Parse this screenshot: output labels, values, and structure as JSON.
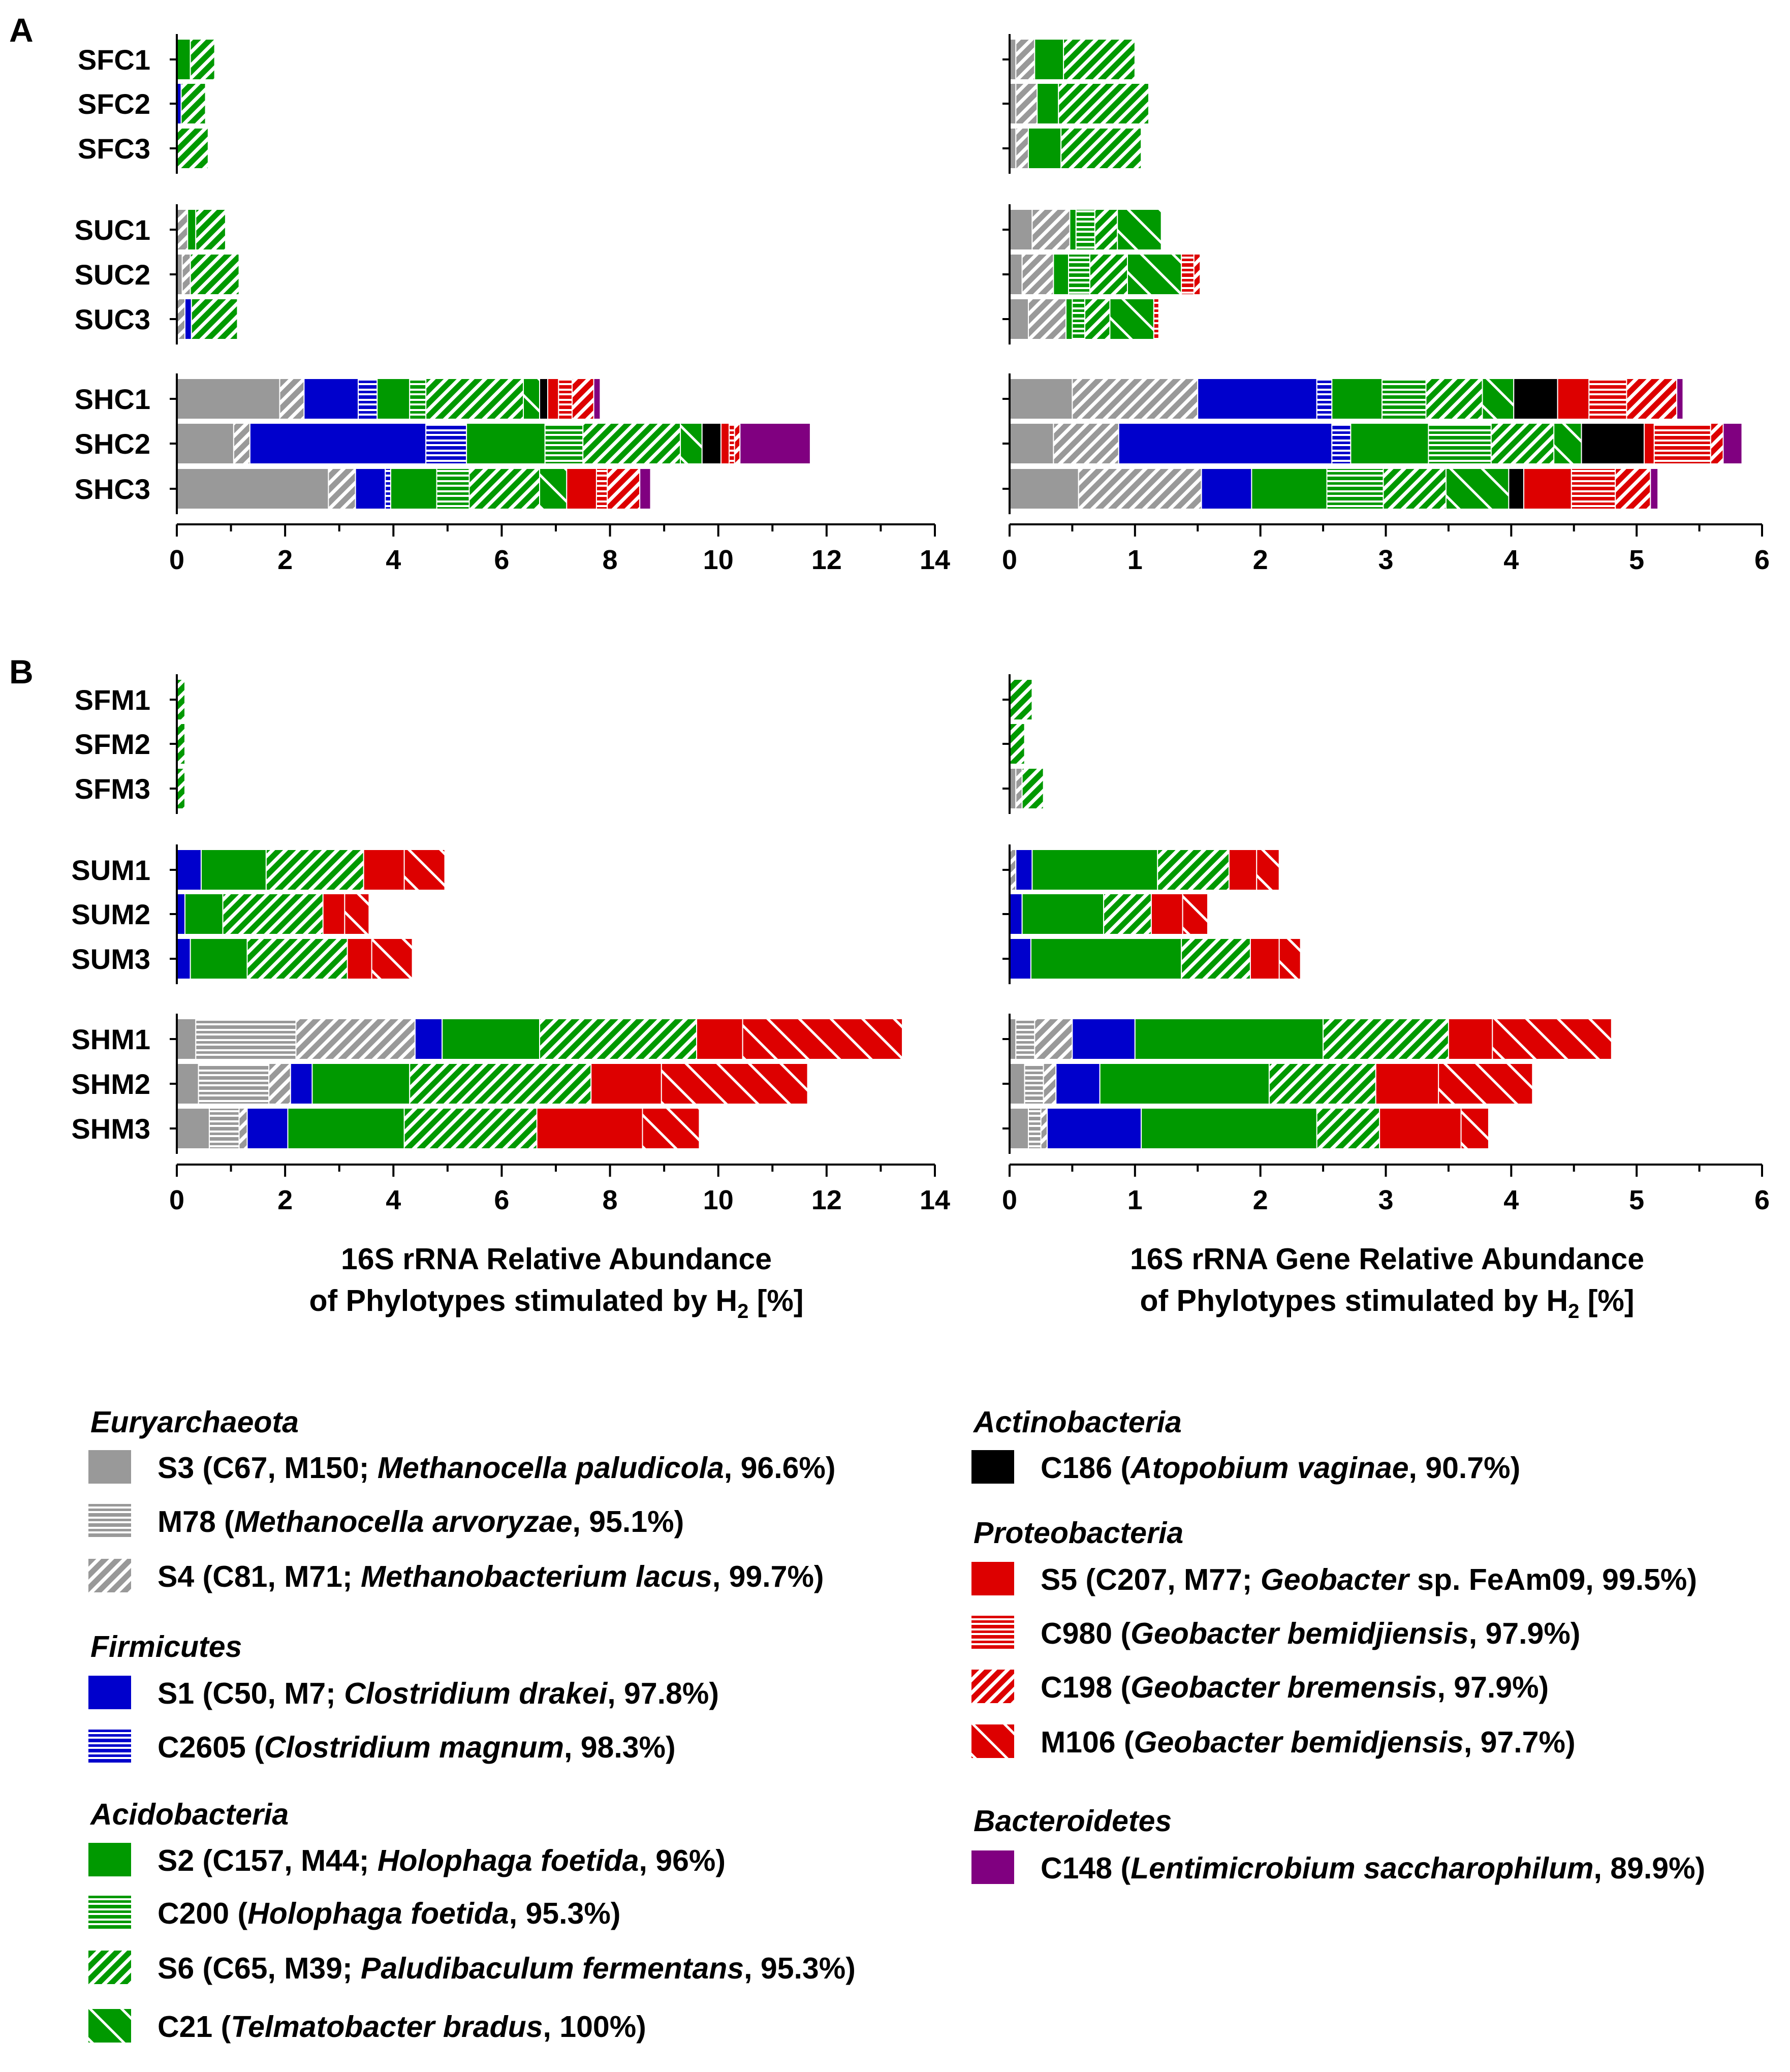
{
  "colors": {
    "grey": "#999999",
    "blue": "#0000cc",
    "green": "#009900",
    "black": "#000000",
    "red": "#dd0000",
    "purple": "#800080"
  },
  "chart_data": [
    {
      "panel": "A",
      "type": "bar",
      "orientation": "horizontal",
      "stacked": true,
      "xlabel": "",
      "xlim": [
        0,
        14
      ],
      "ticks": [
        0,
        2,
        4,
        6,
        8,
        10,
        12,
        14
      ],
      "groups": [
        [
          "SFC1",
          "SFC2",
          "SFC3"
        ],
        [
          "SUC1",
          "SUC2",
          "SUC3"
        ],
        [
          "SHC1",
          "SHC2",
          "SHC3"
        ]
      ],
      "series_order": [
        "S3",
        "M78",
        "S4",
        "S1",
        "C2605",
        "S2",
        "C200",
        "S6",
        "C21",
        "C186",
        "S5",
        "C980",
        "C198",
        "M106",
        "C148"
      ],
      "rows": {
        "SFC1": {
          "S6": 0.45,
          "S2": 0.25
        },
        "SFC2": {
          "S1": 0.08,
          "S6": 0.45
        },
        "SFC3": {
          "S6": 0.58
        },
        "SUC1": {
          "S4": 0.2,
          "S6": 0.55,
          "S2": 0.15
        },
        "SUC2": {
          "S3": 0.1,
          "S4": 0.15,
          "S6": 0.9
        },
        "SUC3": {
          "S1": 0.12,
          "S4": 0.15,
          "S6": 0.85
        },
        "SHC1": {
          "S3": 1.9,
          "S4": 0.45,
          "S1": 1.0,
          "C2605": 0.35,
          "S2": 0.6,
          "C200": 0.3,
          "S6": 1.8,
          "C21": 0.3,
          "C186": 0.15,
          "S5": 0.2,
          "C980": 0.25,
          "C198": 0.4,
          "C148": 0.12
        },
        "SHC2": {
          "S3": 1.05,
          "S4": 0.3,
          "S1": 3.25,
          "C2605": 0.75,
          "S2": 1.45,
          "C200": 0.7,
          "S6": 1.8,
          "C21": 0.4,
          "C186": 0.35,
          "S5": 0.15,
          "C980": 0.1,
          "C198": 0.1,
          "C148": 1.3
        },
        "SHC3": {
          "S3": 2.8,
          "S4": 0.5,
          "S1": 0.55,
          "C2605": 0.1,
          "S2": 0.85,
          "C200": 0.6,
          "S6": 1.3,
          "C21": 0.5,
          "S5": 0.55,
          "C980": 0.2,
          "C198": 0.6,
          "C148": 0.2
        }
      }
    },
    {
      "panel": "A",
      "type": "bar",
      "orientation": "horizontal",
      "stacked": true,
      "xlabel": "",
      "xlim": [
        0,
        6
      ],
      "ticks": [
        0,
        1,
        2,
        3,
        4,
        5,
        6
      ],
      "groups": [
        [
          "SFC1",
          "SFC2",
          "SFC3"
        ],
        [
          "SUC1",
          "SUC2",
          "SUC3"
        ],
        [
          "SHC1",
          "SHC2",
          "SHC3"
        ]
      ],
      "series_order": [
        "S3",
        "M78",
        "S4",
        "S1",
        "C2605",
        "S2",
        "C200",
        "S6",
        "C21",
        "C186",
        "S5",
        "C980",
        "C198",
        "M106",
        "C148"
      ],
      "rows": {
        "SFC1": {
          "S3": 0.05,
          "S4": 0.15,
          "S6": 0.57,
          "S2": 0.23
        },
        "SFC2": {
          "S3": 0.05,
          "S4": 0.17,
          "S6": 0.72,
          "S2": 0.17
        },
        "SFC3": {
          "S3": 0.05,
          "S4": 0.1,
          "S6": 0.64,
          "S2": 0.26
        },
        "SUC1": {
          "S3": 0.18,
          "S4": 0.3,
          "S2": 0.05,
          "C200": 0.15,
          "S6": 0.18,
          "C21": 0.35
        },
        "SUC2": {
          "S3": 0.1,
          "S4": 0.25,
          "S2": 0.12,
          "C200": 0.17,
          "S6": 0.3,
          "C21": 0.43,
          "C198": 0.05,
          "C980": 0.1
        },
        "SUC3": {
          "S3": 0.15,
          "S4": 0.3,
          "S2": 0.05,
          "C200": 0.1,
          "S6": 0.2,
          "C21": 0.35,
          "C980": 0.04
        },
        "SHC1": {
          "S3": 0.5,
          "S4": 1.0,
          "S1": 0.95,
          "C2605": 0.12,
          "S2": 0.4,
          "C200": 0.35,
          "S6": 0.45,
          "C21": 0.25,
          "C186": 0.35,
          "S5": 0.25,
          "C980": 0.3,
          "C198": 0.4,
          "C148": 0.05
        },
        "SHC2": {
          "S3": 0.35,
          "S4": 0.52,
          "S1": 1.7,
          "C2605": 0.15,
          "S2": 0.62,
          "C200": 0.5,
          "S6": 0.5,
          "C21": 0.22,
          "C186": 0.5,
          "S5": 0.08,
          "C980": 0.45,
          "C198": 0.1,
          "C148": 0.15
        },
        "SHC3": {
          "S3": 0.55,
          "S4": 0.98,
          "S1": 0.4,
          "S2": 0.6,
          "C200": 0.45,
          "S6": 0.5,
          "C21": 0.5,
          "C186": 0.12,
          "S5": 0.38,
          "C980": 0.35,
          "C198": 0.28,
          "C148": 0.06
        }
      }
    },
    {
      "panel": "B",
      "type": "bar",
      "orientation": "horizontal",
      "stacked": true,
      "xlabel": "16S rRNA Relative Abundance of Phylotypes stimulated by H2 [%]",
      "xlim": [
        0,
        14
      ],
      "ticks": [
        0,
        2,
        4,
        6,
        8,
        10,
        12,
        14
      ],
      "groups": [
        [
          "SFM1",
          "SFM2",
          "SFM3"
        ],
        [
          "SUM1",
          "SUM2",
          "SUM3"
        ],
        [
          "SHM1",
          "SHM2",
          "SHM3"
        ]
      ],
      "series_order": [
        "S3",
        "M78",
        "S4",
        "S1",
        "C2605",
        "S2",
        "C200",
        "S6",
        "C21",
        "C186",
        "S5",
        "C980",
        "C198",
        "M106",
        "C148"
      ],
      "rows": {
        "SFM1": {
          "S6": 0.15
        },
        "SFM2": {
          "S6": 0.15
        },
        "SFM3": {
          "S6": 0.15
        },
        "SUM1": {
          "S1": 0.45,
          "S2": 1.2,
          "S6": 1.8,
          "S5": 0.75,
          "M106": 0.75
        },
        "SUM2": {
          "S1": 0.15,
          "S2": 0.7,
          "S6": 1.85,
          "S5": 0.4,
          "M106": 0.45
        },
        "SUM3": {
          "S1": 0.25,
          "S2": 1.05,
          "S6": 1.85,
          "S5": 0.45,
          "M106": 0.75
        },
        "SHM1": {
          "S3": 0.35,
          "M78": 1.85,
          "S4": 2.2,
          "S1": 0.5,
          "S2": 1.8,
          "S6": 2.9,
          "S5": 0.85,
          "M106": 2.95
        },
        "SHM2": {
          "S3": 0.4,
          "M78": 1.3,
          "S4": 0.4,
          "S1": 0.4,
          "S2": 1.8,
          "S6": 3.35,
          "S5": 1.3,
          "M106": 2.7
        },
        "SHM3": {
          "S3": 0.6,
          "M78": 0.55,
          "S4": 0.15,
          "S1": 0.75,
          "S2": 2.15,
          "S6": 2.45,
          "S5": 1.95,
          "M106": 1.05
        }
      }
    },
    {
      "panel": "B",
      "type": "bar",
      "orientation": "horizontal",
      "stacked": true,
      "xlabel": "16S rRNA Gene Relative Abundance of Phylotypes stimulated by H2 [%]",
      "xlim": [
        0,
        6
      ],
      "ticks": [
        0,
        1,
        2,
        3,
        4,
        5,
        6
      ],
      "groups": [
        [
          "SFM1",
          "SFM2",
          "SFM3"
        ],
        [
          "SUM1",
          "SUM2",
          "SUM3"
        ],
        [
          "SHM1",
          "SHM2",
          "SHM3"
        ]
      ],
      "series_order": [
        "S3",
        "M78",
        "S4",
        "S1",
        "C2605",
        "S2",
        "C200",
        "S6",
        "C21",
        "C186",
        "S5",
        "C980",
        "C198",
        "M106",
        "C148"
      ],
      "rows": {
        "SFM1": {
          "S6": 0.18
        },
        "SFM2": {
          "S6": 0.12
        },
        "SFM3": {
          "S3": 0.05,
          "S4": 0.05,
          "S6": 0.17
        },
        "SUM1": {
          "S4": 0.05,
          "S1": 0.13,
          "S2": 1.0,
          "S6": 0.57,
          "S5": 0.22,
          "M106": 0.18
        },
        "SUM2": {
          "S1": 0.1,
          "S2": 0.65,
          "S6": 0.38,
          "S5": 0.25,
          "M106": 0.2
        },
        "SUM3": {
          "S1": 0.17,
          "S2": 1.2,
          "S6": 0.55,
          "S5": 0.23,
          "M106": 0.17
        },
        "SHM1": {
          "S3": 0.05,
          "M78": 0.15,
          "S4": 0.3,
          "S1": 0.5,
          "S2": 1.5,
          "S6": 1.0,
          "S5": 0.35,
          "M106": 0.95
        },
        "SHM2": {
          "S3": 0.12,
          "M78": 0.15,
          "S4": 0.1,
          "S1": 0.35,
          "S2": 1.35,
          "S6": 0.85,
          "S5": 0.5,
          "M106": 0.75
        },
        "SHM3": {
          "S3": 0.15,
          "M78": 0.1,
          "S4": 0.05,
          "S1": 0.75,
          "S2": 1.4,
          "S6": 0.5,
          "S5": 0.65,
          "M106": 0.22
        }
      }
    }
  ],
  "axes": {
    "tick_labels_left": [
      "0",
      "2",
      "4",
      "6",
      "8",
      "10",
      "12",
      "14"
    ],
    "tick_labels_right": [
      "0",
      "1",
      "2",
      "3",
      "4",
      "5",
      "6"
    ],
    "xlabel_left_line1": "16S rRNA Relative Abundance",
    "xlabel_left_line2": "of Phylotypes stimulated by H",
    "xlabel_right_line1": "16S rRNA Gene Relative Abundance",
    "xlabel_right_line2": "of Phylotypes stimulated by H",
    "xlabel_sub": "2",
    "xlabel_suffix": " [%]"
  },
  "panel_labels": {
    "a": "A",
    "b": "B"
  },
  "row_labels_a": [
    "SFC1",
    "SFC2",
    "SFC3",
    "SUC1",
    "SUC2",
    "SUC3",
    "SHC1",
    "SHC2",
    "SHC3"
  ],
  "row_labels_b": [
    "SFM1",
    "SFM2",
    "SFM3",
    "SUM1",
    "SUM2",
    "SUM3",
    "SHM1",
    "SHM2",
    "SHM3"
  ],
  "legend": {
    "groups": [
      {
        "title": "Euryarchaeota",
        "items": [
          {
            "key": "S3",
            "pre": "S3 (C67, M150; ",
            "sp": "Methanocella paludicola",
            "post": ", 96.6%)"
          },
          {
            "key": "M78",
            "pre": "M78 (",
            "sp": "Methanocella arvoryzae",
            "post": ", 95.1%)"
          },
          {
            "key": "S4",
            "pre": "S4 (C81, M71; ",
            "sp": "Methanobacterium lacus",
            "post": ", 99.7%)"
          }
        ]
      },
      {
        "title": "Firmicutes",
        "items": [
          {
            "key": "S1",
            "pre": "S1 (C50, M7; ",
            "sp": "Clostridium drakei",
            "post": ", 97.8%)"
          },
          {
            "key": "C2605",
            "pre": "C2605 (",
            "sp": "Clostridium magnum",
            "post": ", 98.3%)"
          }
        ]
      },
      {
        "title": "Acidobacteria",
        "items": [
          {
            "key": "S2",
            "pre": "S2 (C157, M44; ",
            "sp": "Holophaga foetida",
            "post": ", 96%)"
          },
          {
            "key": "C200",
            "pre": "C200 (",
            "sp": "Holophaga foetida",
            "post": ", 95.3%)"
          },
          {
            "key": "S6",
            "pre": "S6 (C65, M39; ",
            "sp": "Paludibaculum fermentans",
            "post": ", 95.3%)"
          },
          {
            "key": "C21",
            "pre": "C21 (",
            "sp": "Telmatobacter bradus",
            "post": ", 100%)"
          }
        ]
      },
      {
        "title": "Actinobacteria",
        "items": [
          {
            "key": "C186",
            "pre": "C186 (",
            "sp": "Atopobium vaginae",
            "post": ", 90.7%)"
          }
        ]
      },
      {
        "title": "Proteobacteria",
        "items": [
          {
            "key": "S5",
            "pre": "S5 (C207, M77; ",
            "sp": "Geobacter",
            "post": " sp. FeAm09, 99.5%)"
          },
          {
            "key": "C980",
            "pre": "C980 (",
            "sp": "Geobacter bemidjiensis",
            "post": ", 97.9%)"
          },
          {
            "key": "C198",
            "pre": "C198 (",
            "sp": "Geobacter bremensis",
            "post": ", 97.9%)"
          },
          {
            "key": "M106",
            "pre": "M106 (",
            "sp": "Geobacter bemidjensis",
            "post": ", 97.7%)"
          }
        ]
      },
      {
        "title": "Bacteroidetes",
        "items": [
          {
            "key": "C148",
            "pre": "C148 (",
            "sp": "Lentimicrobium saccharophilum",
            "post": ", 89.9%)"
          }
        ]
      }
    ]
  },
  "series_style": {
    "S3": {
      "color": "#999999",
      "pattern": "solid"
    },
    "M78": {
      "color": "#999999",
      "pattern": "hlines"
    },
    "S4": {
      "color": "#999999",
      "pattern": "hatch"
    },
    "S1": {
      "color": "#0000cc",
      "pattern": "solid"
    },
    "C2605": {
      "color": "#0000cc",
      "pattern": "hlines"
    },
    "S2": {
      "color": "#009900",
      "pattern": "solid"
    },
    "C200": {
      "color": "#009900",
      "pattern": "hlines"
    },
    "S6": {
      "color": "#009900",
      "pattern": "hatch"
    },
    "C21": {
      "color": "#009900",
      "pattern": "backslash"
    },
    "C186": {
      "color": "#000000",
      "pattern": "solid"
    },
    "S5": {
      "color": "#dd0000",
      "pattern": "solid"
    },
    "C980": {
      "color": "#dd0000",
      "pattern": "hlines"
    },
    "C198": {
      "color": "#dd0000",
      "pattern": "hatch"
    },
    "M106": {
      "color": "#dd0000",
      "pattern": "backslash"
    },
    "C148": {
      "color": "#800080",
      "pattern": "solid"
    }
  }
}
